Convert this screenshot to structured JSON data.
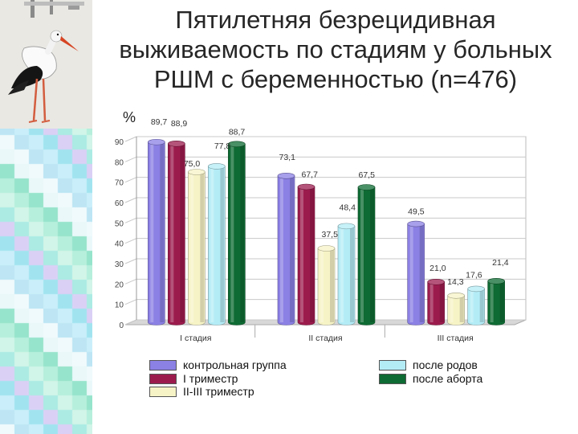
{
  "slide": {
    "title_lines": [
      "Пятилетняя безрецидивная",
      "выживаемость по стадиям у больных",
      "РШМ с беременностью (n=476)"
    ]
  },
  "chart_data": {
    "type": "bar",
    "title": "",
    "xlabel": "",
    "ylabel": "%",
    "ylim": [
      0,
      90
    ],
    "yticks": [
      0,
      10,
      20,
      30,
      40,
      50,
      60,
      70,
      80,
      90
    ],
    "grid": true,
    "legend_position": "bottom",
    "categories": [
      "I стадия",
      "II стадия",
      "III стадия"
    ],
    "series": [
      {
        "name": "контрольная группа",
        "color": "#8b80e4",
        "values": [
          89.7,
          73.1,
          49.5
        ],
        "labels": [
          "89,7",
          "73,1",
          "49,5"
        ]
      },
      {
        "name": "I триместр",
        "color": "#9c1b4d",
        "values": [
          88.9,
          67.7,
          21.0
        ],
        "labels": [
          "88,9",
          "67,7",
          "21,0"
        ]
      },
      {
        "name": "II-III триместр",
        "color": "#f6f3c6",
        "values": [
          75.0,
          37.5,
          14.3
        ],
        "labels": [
          "75,0",
          "37,5",
          "14,3"
        ]
      },
      {
        "name": "после родов",
        "color": "#b4ecf6",
        "values": [
          77.8,
          48.4,
          17.6
        ],
        "labels": [
          "77,8",
          "48,4",
          "17,6"
        ]
      },
      {
        "name": "после аборта",
        "color": "#0e6b33",
        "values": [
          88.7,
          67.5,
          21.4
        ],
        "labels": [
          "88,7",
          "67,5",
          "21,4"
        ]
      }
    ]
  }
}
